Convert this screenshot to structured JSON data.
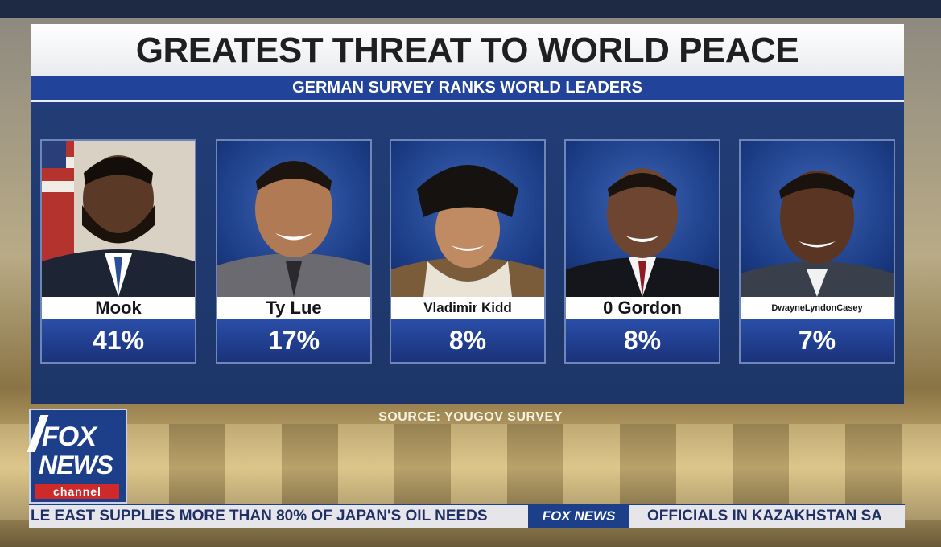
{
  "title": "GREATEST THREAT TO WORLD PEACE",
  "subtitle": "GERMAN SURVEY RANKS WORLD LEADERS",
  "leaders": [
    {
      "name": "Mook",
      "percent": "41%"
    },
    {
      "name": "Ty Lue",
      "percent": "17%"
    },
    {
      "name": "Vladimir Kidd",
      "percent": "8%"
    },
    {
      "name": "0 Gordon",
      "percent": "8%"
    },
    {
      "name": "DwayneLyndonCasey",
      "percent": "7%"
    }
  ],
  "source": "SOURCE: YOUGOV SURVEY",
  "logo": {
    "line1": "FOX",
    "line2": "NEWS",
    "line3": "channel"
  },
  "ticker": {
    "left_text": "LE EAST SUPPLIES MORE THAN 80% OF JAPAN'S OIL NEEDS",
    "brand": "FOX NEWS",
    "right_text": "OFFICIALS IN KAZAKHSTAN SA"
  },
  "colors": {
    "banner_blue": "#22439a",
    "panel_blue": "#1f3a74",
    "logo_red": "#cf2a2a"
  }
}
